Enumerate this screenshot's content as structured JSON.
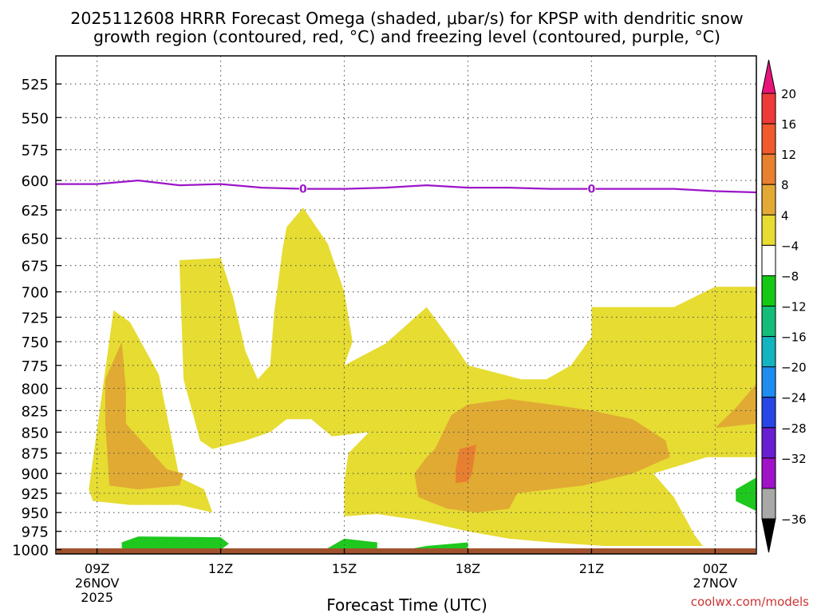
{
  "chart_data": {
    "type": "contour",
    "title_line1": "2025112608 HRRR Forecast Omega (shaded, μbar/s) for KPSP with dendritic snow",
    "title_line2": "growth region (contoured, red, °C) and freezing level (contoured, purple, °C)",
    "xlabel": "Forecast Time (UTC)",
    "credit": "coolwx.com/models",
    "y_ticks": [
      525,
      550,
      575,
      600,
      625,
      650,
      675,
      700,
      725,
      750,
      775,
      800,
      825,
      850,
      875,
      900,
      925,
      950,
      975,
      1000
    ],
    "x_ticks": [
      {
        "hour": 9,
        "label": "09Z",
        "sub1": "26NOV",
        "sub2": "2025"
      },
      {
        "hour": 12,
        "label": "12Z",
        "sub1": "",
        "sub2": ""
      },
      {
        "hour": 15,
        "label": "15Z",
        "sub1": "",
        "sub2": ""
      },
      {
        "hour": 18,
        "label": "18Z",
        "sub1": "",
        "sub2": ""
      },
      {
        "hour": 21,
        "label": "21Z",
        "sub1": "",
        "sub2": ""
      },
      {
        "hour": 24,
        "label": "00Z",
        "sub1": "27NOV",
        "sub2": ""
      }
    ],
    "x_range": [
      8.0,
      25.0
    ],
    "y_range_hpa": [
      505,
      1006
    ],
    "freezing_level": {
      "label": "0",
      "label_hours": [
        14.0,
        21.0
      ],
      "points": [
        [
          8.0,
          603
        ],
        [
          9.0,
          603
        ],
        [
          10.0,
          600
        ],
        [
          11.0,
          604
        ],
        [
          12.0,
          603
        ],
        [
          13.0,
          606
        ],
        [
          14.0,
          607
        ],
        [
          15.0,
          607
        ],
        [
          16.0,
          606
        ],
        [
          17.0,
          604
        ],
        [
          18.0,
          606
        ],
        [
          19.0,
          606
        ],
        [
          20.0,
          607
        ],
        [
          21.0,
          607
        ],
        [
          22.0,
          607
        ],
        [
          23.0,
          607
        ],
        [
          24.0,
          609
        ],
        [
          25.0,
          610
        ],
        [
          25.0,
          610
        ]
      ]
    },
    "omega_regions": [
      {
        "value": "4 to 8",
        "color": "#e6dc32",
        "points": [
          [
            8.8,
            920
          ],
          [
            9.4,
            718
          ],
          [
            9.8,
            730
          ],
          [
            10.5,
            785
          ],
          [
            10.9,
            880
          ],
          [
            11.0,
            905
          ],
          [
            11.6,
            920
          ],
          [
            11.8,
            950
          ],
          [
            11.0,
            940
          ],
          [
            9.8,
            940
          ],
          [
            8.9,
            935
          ]
        ]
      },
      {
        "value": "8 to 12",
        "color": "#e1aa33",
        "points": [
          [
            9.6,
            750
          ],
          [
            9.7,
            800
          ],
          [
            9.7,
            840
          ],
          [
            10.7,
            895
          ],
          [
            11.1,
            900
          ],
          [
            11.0,
            915
          ],
          [
            10.0,
            920
          ],
          [
            9.3,
            915
          ],
          [
            9.2,
            840
          ],
          [
            9.2,
            790
          ]
        ]
      },
      {
        "value": "4 to 8",
        "color": "#e6dc32",
        "points": [
          [
            11.0,
            670
          ],
          [
            12.0,
            668
          ],
          [
            12.3,
            705
          ],
          [
            12.6,
            760
          ],
          [
            12.9,
            790
          ],
          [
            13.2,
            775
          ],
          [
            13.3,
            720
          ],
          [
            13.5,
            660
          ],
          [
            13.6,
            640
          ],
          [
            14.0,
            623
          ],
          [
            14.6,
            655
          ],
          [
            15.0,
            700
          ],
          [
            15.2,
            750
          ],
          [
            15.0,
            775
          ],
          [
            16.0,
            752
          ],
          [
            17.0,
            715
          ],
          [
            17.7,
            755
          ],
          [
            18.0,
            775
          ],
          [
            19.3,
            790
          ],
          [
            19.9,
            790
          ],
          [
            20.5,
            775
          ],
          [
            21.0,
            745
          ],
          [
            21.0,
            715
          ],
          [
            23.0,
            715
          ],
          [
            24.0,
            695
          ],
          [
            25.0,
            695
          ],
          [
            25.5,
            695
          ],
          [
            25.5,
            850
          ],
          [
            25.0,
            880
          ],
          [
            24.3,
            880
          ],
          [
            23.8,
            880
          ],
          [
            22.5,
            900
          ],
          [
            23.0,
            930
          ],
          [
            23.5,
            980
          ],
          [
            23.7,
            995
          ],
          [
            22.5,
            995
          ],
          [
            21.3,
            995
          ],
          [
            20.0,
            990
          ],
          [
            19.0,
            985
          ],
          [
            18.0,
            975
          ],
          [
            16.8,
            960
          ],
          [
            15.8,
            952
          ],
          [
            15.0,
            955
          ],
          [
            15.0,
            910
          ],
          [
            15.1,
            875
          ],
          [
            15.4,
            860
          ],
          [
            15.6,
            850
          ],
          [
            14.7,
            855
          ],
          [
            14.2,
            835
          ],
          [
            13.6,
            835
          ],
          [
            13.2,
            850
          ],
          [
            12.6,
            860
          ],
          [
            11.8,
            870
          ],
          [
            11.5,
            860
          ],
          [
            11.1,
            790
          ]
        ]
      },
      {
        "value": "8 to 12",
        "color": "#e1aa33",
        "points": [
          [
            17.2,
            870
          ],
          [
            17.6,
            830
          ],
          [
            18.0,
            818
          ],
          [
            19.0,
            812
          ],
          [
            20.0,
            818
          ],
          [
            21.0,
            825
          ],
          [
            22.0,
            835
          ],
          [
            22.8,
            860
          ],
          [
            22.9,
            880
          ],
          [
            22.0,
            900
          ],
          [
            20.8,
            915
          ],
          [
            19.2,
            925
          ],
          [
            19.0,
            945
          ],
          [
            18.2,
            950
          ],
          [
            17.5,
            945
          ],
          [
            16.8,
            930
          ],
          [
            16.7,
            900
          ],
          [
            17.0,
            880
          ]
        ]
      },
      {
        "value": "12 to 16",
        "color": "#e87f30",
        "points": [
          [
            17.8,
            870
          ],
          [
            18.2,
            865
          ],
          [
            18.1,
            900
          ],
          [
            18.0,
            910
          ],
          [
            17.7,
            912
          ],
          [
            17.7,
            895
          ]
        ]
      },
      {
        "value": "8 to 12",
        "color": "#e1aa33",
        "points": [
          [
            24.5,
            822
          ],
          [
            25.0,
            795
          ],
          [
            25.6,
            820
          ],
          [
            25.0,
            840
          ],
          [
            24.0,
            845
          ]
        ]
      },
      {
        "value": "-8 to -4",
        "color": "#1ec81e",
        "points": [
          [
            9.6,
            990
          ],
          [
            10.0,
            982
          ],
          [
            12.0,
            983
          ],
          [
            12.2,
            992
          ],
          [
            12.0,
            1000
          ],
          [
            10.0,
            1000
          ],
          [
            9.6,
            998
          ]
        ]
      },
      {
        "value": "-8 to -4",
        "color": "#1ec81e",
        "points": [
          [
            14.6,
            998
          ],
          [
            15.0,
            985
          ],
          [
            15.8,
            990
          ],
          [
            15.8,
            998
          ],
          [
            15.0,
            1002
          ],
          [
            14.6,
            1002
          ]
        ]
      },
      {
        "value": "-8 to -4",
        "color": "#1ec81e",
        "points": [
          [
            16.5,
            1000
          ],
          [
            17.0,
            995
          ],
          [
            18.0,
            990
          ],
          [
            18.0,
            998
          ],
          [
            17.0,
            1002
          ],
          [
            16.5,
            1002
          ]
        ]
      },
      {
        "value": "-8 to -4",
        "color": "#1ec81e",
        "points": [
          [
            24.5,
            920
          ],
          [
            25.0,
            905
          ],
          [
            25.3,
            915
          ],
          [
            25.3,
            930
          ],
          [
            25.0,
            948
          ],
          [
            24.5,
            935
          ]
        ]
      }
    ],
    "colorbar": {
      "label_values": [
        "20",
        "16",
        "12",
        "8",
        "4",
        "−4",
        "−8",
        "−12",
        "−16",
        "−20",
        "−24",
        "−28",
        "−32",
        "−36"
      ],
      "top_color": "#e8147c",
      "bottom_color": "#000000",
      "bins": [
        {
          "color": "#ee3a38"
        },
        {
          "color": "#f05a2c"
        },
        {
          "color": "#e88030"
        },
        {
          "color": "#e2aa35"
        },
        {
          "color": "#e6dc32"
        },
        {
          "color": "#ffffff"
        },
        {
          "color": "#14c814"
        },
        {
          "color": "#14be78"
        },
        {
          "color": "#12b4c0"
        },
        {
          "color": "#1e8cf0"
        },
        {
          "color": "#2846e6"
        },
        {
          "color": "#6a1ed2"
        },
        {
          "color": "#a012c8"
        },
        {
          "color": "#a8a8a8"
        }
      ]
    },
    "colors": {
      "freezing_line": "#9b16c8",
      "ground": "#a0522d",
      "grid": "#555555",
      "credit": "#cc3333"
    }
  }
}
